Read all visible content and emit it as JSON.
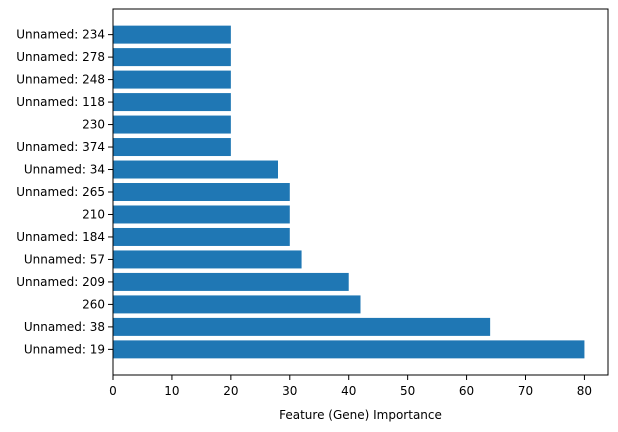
{
  "chart_data": {
    "type": "bar",
    "orientation": "horizontal",
    "title": "",
    "xlabel": "Feature (Gene) Importance",
    "ylabel": "",
    "xlim": [
      0,
      84
    ],
    "x_ticks": [
      0,
      10,
      20,
      30,
      40,
      50,
      60,
      70,
      80
    ],
    "grid": false,
    "legend": "none",
    "bar_color": "#1f77b4",
    "categories": [
      "Unnamed: 19",
      "Unnamed: 38",
      "260",
      "Unnamed: 209",
      "Unnamed: 57",
      "Unnamed: 184",
      "210",
      "Unnamed: 265",
      "Unnamed: 34",
      "Unnamed: 374",
      "230",
      "Unnamed: 118",
      "Unnamed: 248",
      "Unnamed: 278",
      "Unnamed: 234"
    ],
    "values": [
      80,
      64,
      42,
      40,
      32,
      30,
      30,
      30,
      28,
      20,
      20,
      20,
      20,
      20,
      20
    ]
  }
}
